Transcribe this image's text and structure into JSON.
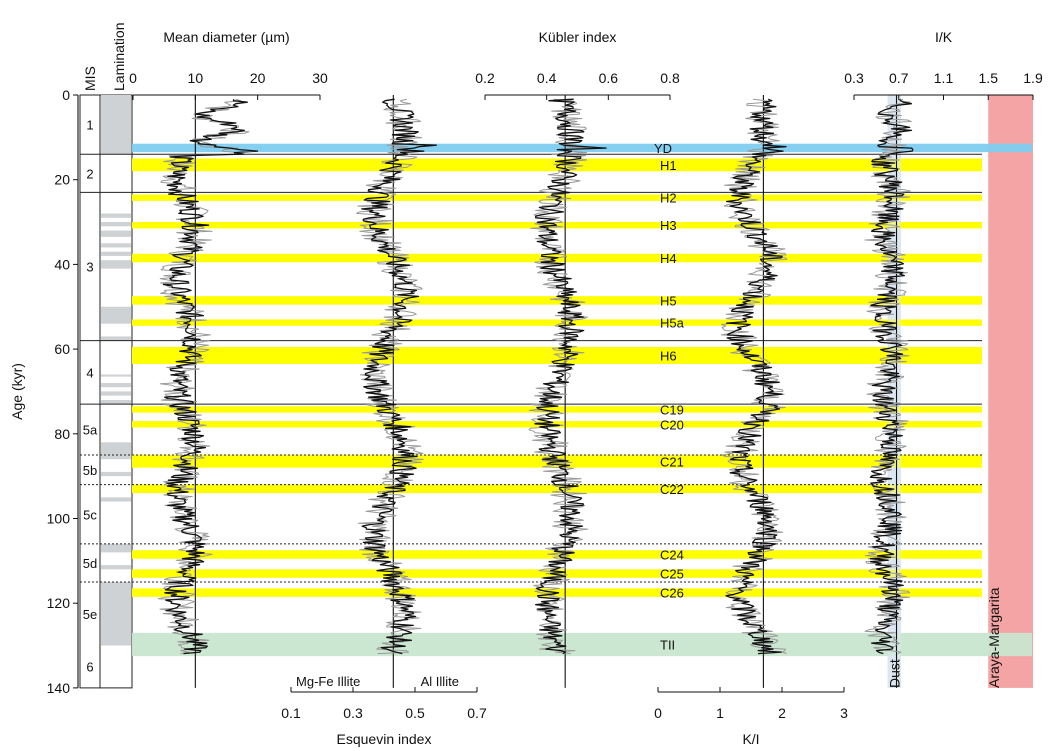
{
  "chart_data": {
    "type": "line",
    "y_axis": {
      "label": "Age (kyr)",
      "range": [
        0,
        140
      ],
      "ticks": [
        0,
        20,
        40,
        60,
        80,
        100,
        120,
        140
      ],
      "inverted": true
    },
    "headers": {
      "mis": "MIS",
      "lamination": "Lamination"
    },
    "mis_stages": [
      {
        "label": "1",
        "top": 0,
        "bottom": 14
      },
      {
        "label": "2",
        "top": 14,
        "bottom": 23
      },
      {
        "label": "3",
        "top": 23,
        "bottom": 58
      },
      {
        "label": "4",
        "top": 58,
        "bottom": 73
      },
      {
        "label": "5a",
        "top": 73,
        "bottom": 85
      },
      {
        "label": "5b",
        "top": 85,
        "bottom": 92
      },
      {
        "label": "5c",
        "top": 92,
        "bottom": 106
      },
      {
        "label": "5d",
        "top": 106,
        "bottom": 115
      },
      {
        "label": "5e",
        "top": 115,
        "bottom": 130
      },
      {
        "label": "6",
        "top": 130,
        "bottom": 140
      }
    ],
    "lamination_intervals": [
      [
        0,
        14
      ],
      [
        28,
        29
      ],
      [
        30,
        31
      ],
      [
        32,
        33.5
      ],
      [
        35,
        36
      ],
      [
        37,
        38
      ],
      [
        39,
        41
      ],
      [
        50,
        54
      ],
      [
        57,
        58
      ],
      [
        66,
        66.5
      ],
      [
        68,
        69
      ],
      [
        70,
        71
      ],
      [
        72,
        73
      ],
      [
        82,
        86
      ],
      [
        89,
        90
      ],
      [
        95,
        96
      ],
      [
        106,
        108
      ],
      [
        111,
        112
      ],
      [
        115,
        130
      ]
    ],
    "panels": [
      {
        "name": "mean-diameter",
        "label": "Mean diameter (µm)",
        "axis_position": "top",
        "range": [
          0,
          30
        ],
        "ticks": [
          0,
          10,
          20,
          30
        ],
        "reference_line": 10
      },
      {
        "name": "esquevin",
        "label": "Esquevin index",
        "axis_position": "bottom",
        "range": [
          0.1,
          0.7
        ],
        "ticks": [
          0.1,
          0.3,
          0.5,
          0.7
        ],
        "reference_line": 0.43,
        "annotations": [
          "Mg-Fe Illite",
          "Al Illite"
        ]
      },
      {
        "name": "kubler",
        "label": "Kübler index",
        "axis_position": "top",
        "range": [
          0.2,
          0.8
        ],
        "ticks": [
          0.2,
          0.4,
          0.6,
          0.8
        ],
        "reference_line": 0.46
      },
      {
        "name": "k-i",
        "label": "K/I",
        "axis_position": "bottom",
        "range": [
          0,
          3
        ],
        "ticks": [
          0,
          1,
          2,
          3
        ],
        "reference_line": 1.7
      },
      {
        "name": "i-k",
        "label": "I/K",
        "axis_position": "top",
        "range": [
          0.3,
          1.9
        ],
        "ticks": [
          0.3,
          0.7,
          1.1,
          1.5,
          1.9
        ],
        "tick_labels": [
          "0.3",
          "0.7",
          "1.1",
          "1.5",
          "1.9"
        ],
        "reference_line": 0.68
      }
    ],
    "events": [
      {
        "label": "YD",
        "top": 11.5,
        "bottom": 13.5,
        "kind": "younger-dryas",
        "color": "#7ecdf0"
      },
      {
        "label": "H1",
        "top": 15,
        "bottom": 18
      },
      {
        "label": "H2",
        "top": 23.5,
        "bottom": 25
      },
      {
        "label": "H3",
        "top": 30,
        "bottom": 31.5
      },
      {
        "label": "H4",
        "top": 37.5,
        "bottom": 39.5
      },
      {
        "label": "H5",
        "top": 47.5,
        "bottom": 49.5
      },
      {
        "label": "H5a",
        "top": 53,
        "bottom": 54.5
      },
      {
        "label": "H6",
        "top": 59.5,
        "bottom": 63.5
      },
      {
        "label": "C19",
        "top": 73.5,
        "bottom": 75
      },
      {
        "label": "C20",
        "top": 77,
        "bottom": 78.5
      },
      {
        "label": "C21",
        "top": 85,
        "bottom": 88
      },
      {
        "label": "C22",
        "top": 92,
        "bottom": 94
      },
      {
        "label": "C24",
        "top": 107.5,
        "bottom": 109.5
      },
      {
        "label": "C25",
        "top": 112,
        "bottom": 114
      },
      {
        "label": "C26",
        "top": 116.5,
        "bottom": 118.5
      },
      {
        "label": "TII",
        "top": 127,
        "bottom": 132.5,
        "kind": "termination",
        "color": "#c9e6cf"
      }
    ],
    "solid_boundaries": [
      14,
      23,
      58,
      73
    ],
    "dotted_boundaries": [
      85,
      92,
      106,
      115
    ],
    "shaded_bands": [
      {
        "label": "Dust",
        "range_ik": [
          0.6,
          0.72
        ],
        "age": [
          0,
          140
        ],
        "color": "#dde7f1"
      },
      {
        "label": "Araya-Margarita",
        "range_ik": [
          1.5,
          1.9
        ],
        "age": [
          0,
          140
        ],
        "color": "#f4a4a4"
      }
    ],
    "colors": {
      "event_band": "#ffff00",
      "series_dark": "#111111",
      "series_light": "#999999"
    }
  }
}
